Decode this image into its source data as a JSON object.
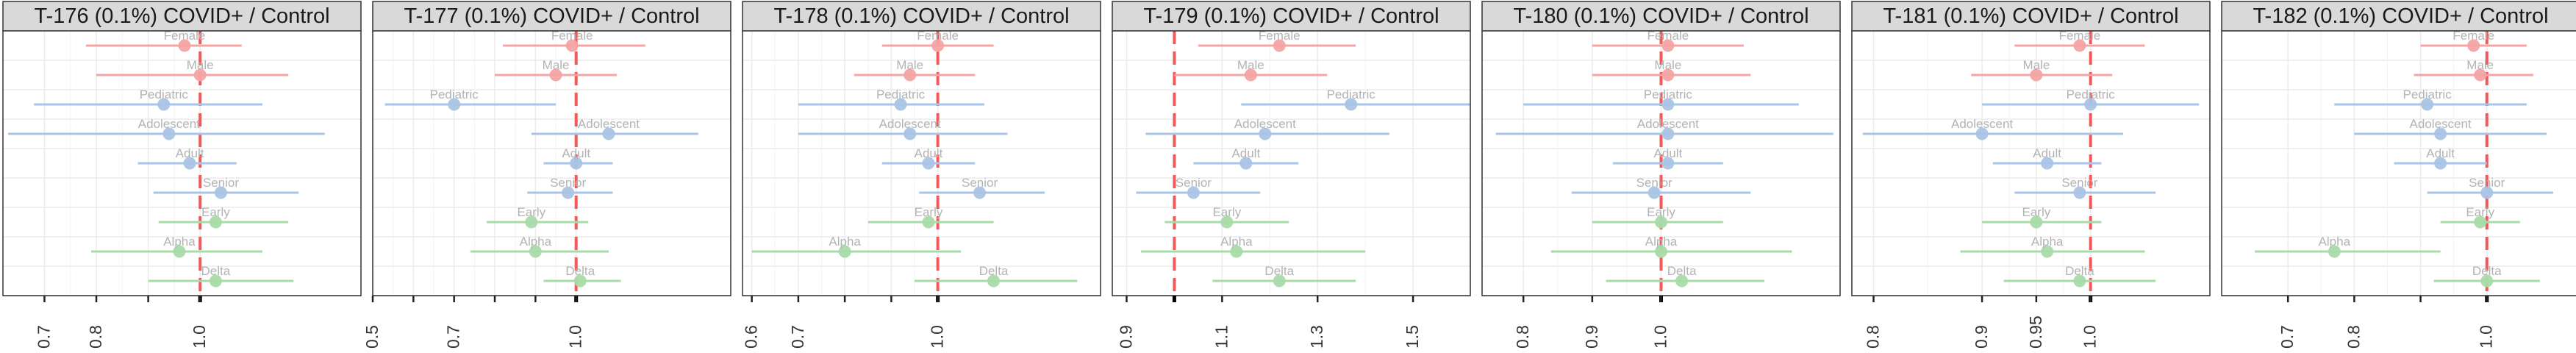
{
  "colors": {
    "strip_bg": "#d9d9d9",
    "panel_border": "#333333",
    "grid": "#ebebeb",
    "reference_line": "#f15a5a",
    "gender": "#f4a4a4",
    "age": "#a9c4e4",
    "variant": "#a9dba9",
    "point_label": "#b3b3b3",
    "axis_text": "#333333"
  },
  "chart_data": [
    {
      "type": "scatter",
      "title": "T-176 (0.1%) COVID+ / Control",
      "xticks": [
        0.7,
        0.8,
        1.0
      ],
      "xtick_labels": [
        "0.7",
        "0.8",
        "1.0"
      ],
      "xlim": [
        0.62,
        1.31
      ],
      "extra_ticks": [
        0.9
      ],
      "reference_line": 1.0,
      "points": [
        {
          "label": "Female",
          "group": "gender",
          "est": 0.97,
          "lo": 0.78,
          "hi": 1.08
        },
        {
          "label": "Male",
          "group": "gender",
          "est": 1.0,
          "lo": 0.8,
          "hi": 1.17
        },
        {
          "label": "Pediatric",
          "group": "age",
          "est": 0.93,
          "lo": 0.68,
          "hi": 1.12
        },
        {
          "label": "Adolescent",
          "group": "age",
          "est": 0.94,
          "lo": 0.63,
          "hi": 1.24
        },
        {
          "label": "Adult",
          "group": "age",
          "est": 0.98,
          "lo": 0.88,
          "hi": 1.07
        },
        {
          "label": "Senior",
          "group": "age",
          "est": 1.04,
          "lo": 0.91,
          "hi": 1.19
        },
        {
          "label": "Early",
          "group": "variant",
          "est": 1.03,
          "lo": 0.92,
          "hi": 1.17
        },
        {
          "label": "Alpha",
          "group": "variant",
          "est": 0.96,
          "lo": 0.79,
          "hi": 1.12
        },
        {
          "label": "Delta",
          "group": "variant",
          "est": 1.03,
          "lo": 0.9,
          "hi": 1.18
        }
      ]
    },
    {
      "type": "scatter",
      "title": "T-177 (0.1%) COVID+ / Control",
      "xticks": [
        0.5,
        0.7,
        1.0
      ],
      "xtick_labels": [
        "0.5",
        "0.7",
        "1.0"
      ],
      "xlim": [
        0.5,
        1.38
      ],
      "extra_ticks": [
        0.6,
        0.8,
        0.9
      ],
      "reference_line": 1.0,
      "points": [
        {
          "label": "Female",
          "group": "gender",
          "est": 0.99,
          "lo": 0.82,
          "hi": 1.17
        },
        {
          "label": "Male",
          "group": "gender",
          "est": 0.95,
          "lo": 0.8,
          "hi": 1.1
        },
        {
          "label": "Pediatric",
          "group": "age",
          "est": 0.7,
          "lo": 0.53,
          "hi": 0.95
        },
        {
          "label": "Adolescent",
          "group": "age",
          "est": 1.08,
          "lo": 0.89,
          "hi": 1.3
        },
        {
          "label": "Adult",
          "group": "age",
          "est": 1.0,
          "lo": 0.92,
          "hi": 1.09
        },
        {
          "label": "Senior",
          "group": "age",
          "est": 0.98,
          "lo": 0.88,
          "hi": 1.09
        },
        {
          "label": "Early",
          "group": "variant",
          "est": 0.89,
          "lo": 0.78,
          "hi": 1.03
        },
        {
          "label": "Alpha",
          "group": "variant",
          "est": 0.9,
          "lo": 0.74,
          "hi": 1.08
        },
        {
          "label": "Delta",
          "group": "variant",
          "est": 1.01,
          "lo": 0.92,
          "hi": 1.11
        }
      ]
    },
    {
      "type": "scatter",
      "title": "T-178 (0.1%) COVID+ / Control",
      "xticks": [
        0.6,
        0.7,
        1.0
      ],
      "xtick_labels": [
        "0.6",
        "0.7",
        "1.0"
      ],
      "xlim": [
        0.58,
        1.35
      ],
      "extra_ticks": [
        0.8,
        0.9
      ],
      "reference_line": 1.0,
      "points": [
        {
          "label": "Female",
          "group": "gender",
          "est": 1.0,
          "lo": 0.88,
          "hi": 1.12
        },
        {
          "label": "Male",
          "group": "gender",
          "est": 0.94,
          "lo": 0.82,
          "hi": 1.08
        },
        {
          "label": "Pediatric",
          "group": "age",
          "est": 0.92,
          "lo": 0.7,
          "hi": 1.1
        },
        {
          "label": "Adolescent",
          "group": "age",
          "est": 0.94,
          "lo": 0.7,
          "hi": 1.15
        },
        {
          "label": "Adult",
          "group": "age",
          "est": 0.98,
          "lo": 0.88,
          "hi": 1.08
        },
        {
          "label": "Senior",
          "group": "age",
          "est": 1.09,
          "lo": 0.96,
          "hi": 1.23
        },
        {
          "label": "Early",
          "group": "variant",
          "est": 0.98,
          "lo": 0.85,
          "hi": 1.12
        },
        {
          "label": "Alpha",
          "group": "variant",
          "est": 0.8,
          "lo": 0.6,
          "hi": 1.05
        },
        {
          "label": "Delta",
          "group": "variant",
          "est": 1.12,
          "lo": 0.95,
          "hi": 1.3
        }
      ]
    },
    {
      "type": "scatter",
      "title": "T-179 (0.1%) COVID+ / Control",
      "xticks": [
        0.9,
        1.1,
        1.3,
        1.5
      ],
      "xtick_labels": [
        "0.9",
        "1.1",
        "1.3",
        "1.5"
      ],
      "xlim": [
        0.87,
        1.62
      ],
      "extra_ticks": [],
      "reference_line": 1.0,
      "points": [
        {
          "label": "Female",
          "group": "gender",
          "est": 1.22,
          "lo": 1.05,
          "hi": 1.38
        },
        {
          "label": "Male",
          "group": "gender",
          "est": 1.16,
          "lo": 1.0,
          "hi": 1.32
        },
        {
          "label": "Pediatric",
          "group": "age",
          "est": 1.37,
          "lo": 1.14,
          "hi": 1.62
        },
        {
          "label": "Adolescent",
          "group": "age",
          "est": 1.19,
          "lo": 0.94,
          "hi": 1.45
        },
        {
          "label": "Adult",
          "group": "age",
          "est": 1.15,
          "lo": 1.04,
          "hi": 1.26
        },
        {
          "label": "Senior",
          "group": "age",
          "est": 1.04,
          "lo": 0.92,
          "hi": 1.18
        },
        {
          "label": "Early",
          "group": "variant",
          "est": 1.11,
          "lo": 0.98,
          "hi": 1.24
        },
        {
          "label": "Alpha",
          "group": "variant",
          "est": 1.13,
          "lo": 0.93,
          "hi": 1.4
        },
        {
          "label": "Delta",
          "group": "variant",
          "est": 1.22,
          "lo": 1.08,
          "hi": 1.38
        }
      ]
    },
    {
      "type": "scatter",
      "title": "T-180 (0.1%) COVID+ / Control",
      "xticks": [
        0.8,
        0.9,
        1.0
      ],
      "xtick_labels": [
        "0.8",
        "0.9",
        "1.0"
      ],
      "xlim": [
        0.74,
        1.26
      ],
      "extra_ticks": [],
      "reference_line": 1.0,
      "points": [
        {
          "label": "Female",
          "group": "gender",
          "est": 1.01,
          "lo": 0.9,
          "hi": 1.12
        },
        {
          "label": "Male",
          "group": "gender",
          "est": 1.01,
          "lo": 0.9,
          "hi": 1.13
        },
        {
          "label": "Pediatric",
          "group": "age",
          "est": 1.01,
          "lo": 0.8,
          "hi": 1.2
        },
        {
          "label": "Adolescent",
          "group": "age",
          "est": 1.01,
          "lo": 0.76,
          "hi": 1.25
        },
        {
          "label": "Adult",
          "group": "age",
          "est": 1.01,
          "lo": 0.93,
          "hi": 1.09
        },
        {
          "label": "Senior",
          "group": "age",
          "est": 0.99,
          "lo": 0.87,
          "hi": 1.13
        },
        {
          "label": "Early",
          "group": "variant",
          "est": 1.0,
          "lo": 0.9,
          "hi": 1.09
        },
        {
          "label": "Alpha",
          "group": "variant",
          "est": 1.0,
          "lo": 0.84,
          "hi": 1.19
        },
        {
          "label": "Delta",
          "group": "variant",
          "est": 1.03,
          "lo": 0.92,
          "hi": 1.15
        }
      ]
    },
    {
      "type": "scatter",
      "title": "T-181 (0.1%) COVID+ / Control",
      "xticks": [
        0.8,
        0.9,
        0.95,
        1.0
      ],
      "xtick_labels": [
        "0.8",
        "0.9",
        "0.95",
        "1.0"
      ],
      "xlim": [
        0.78,
        1.11
      ],
      "extra_ticks": [],
      "reference_line": 1.0,
      "points": [
        {
          "label": "Female",
          "group": "gender",
          "est": 0.99,
          "lo": 0.93,
          "hi": 1.05
        },
        {
          "label": "Male",
          "group": "gender",
          "est": 0.95,
          "lo": 0.89,
          "hi": 1.02
        },
        {
          "label": "Pediatric",
          "group": "age",
          "est": 1.0,
          "lo": 0.9,
          "hi": 1.1
        },
        {
          "label": "Adolescent",
          "group": "age",
          "est": 0.9,
          "lo": 0.79,
          "hi": 1.03
        },
        {
          "label": "Adult",
          "group": "age",
          "est": 0.96,
          "lo": 0.91,
          "hi": 1.01
        },
        {
          "label": "Senior",
          "group": "age",
          "est": 0.99,
          "lo": 0.93,
          "hi": 1.06
        },
        {
          "label": "Early",
          "group": "variant",
          "est": 0.95,
          "lo": 0.9,
          "hi": 1.01
        },
        {
          "label": "Alpha",
          "group": "variant",
          "est": 0.96,
          "lo": 0.88,
          "hi": 1.05
        },
        {
          "label": "Delta",
          "group": "variant",
          "est": 0.99,
          "lo": 0.92,
          "hi": 1.06
        }
      ]
    },
    {
      "type": "scatter",
      "title": "T-182 (0.1%) COVID+ / Control",
      "xticks": [
        0.7,
        0.8,
        1.0
      ],
      "xtick_labels": [
        "0.7",
        "0.8",
        "1.0"
      ],
      "xlim": [
        0.6,
        1.14
      ],
      "extra_ticks": [
        0.9
      ],
      "reference_line": 1.0,
      "points": [
        {
          "label": "Female",
          "group": "gender",
          "est": 0.98,
          "lo": 0.9,
          "hi": 1.06
        },
        {
          "label": "Male",
          "group": "gender",
          "est": 0.99,
          "lo": 0.89,
          "hi": 1.07
        },
        {
          "label": "Pediatric",
          "group": "age",
          "est": 0.91,
          "lo": 0.77,
          "hi": 1.06
        },
        {
          "label": "Adolescent",
          "group": "age",
          "est": 0.93,
          "lo": 0.8,
          "hi": 1.09
        },
        {
          "label": "Adult",
          "group": "age",
          "est": 0.93,
          "lo": 0.86,
          "hi": 1.0
        },
        {
          "label": "Senior",
          "group": "age",
          "est": 1.0,
          "lo": 0.91,
          "hi": 1.1
        },
        {
          "label": "Early",
          "group": "variant",
          "est": 0.99,
          "lo": 0.93,
          "hi": 1.05
        },
        {
          "label": "Alpha",
          "group": "variant",
          "est": 0.77,
          "lo": 0.65,
          "hi": 0.93
        },
        {
          "label": "Delta",
          "group": "variant",
          "est": 1.0,
          "lo": 0.92,
          "hi": 1.08
        }
      ]
    }
  ]
}
